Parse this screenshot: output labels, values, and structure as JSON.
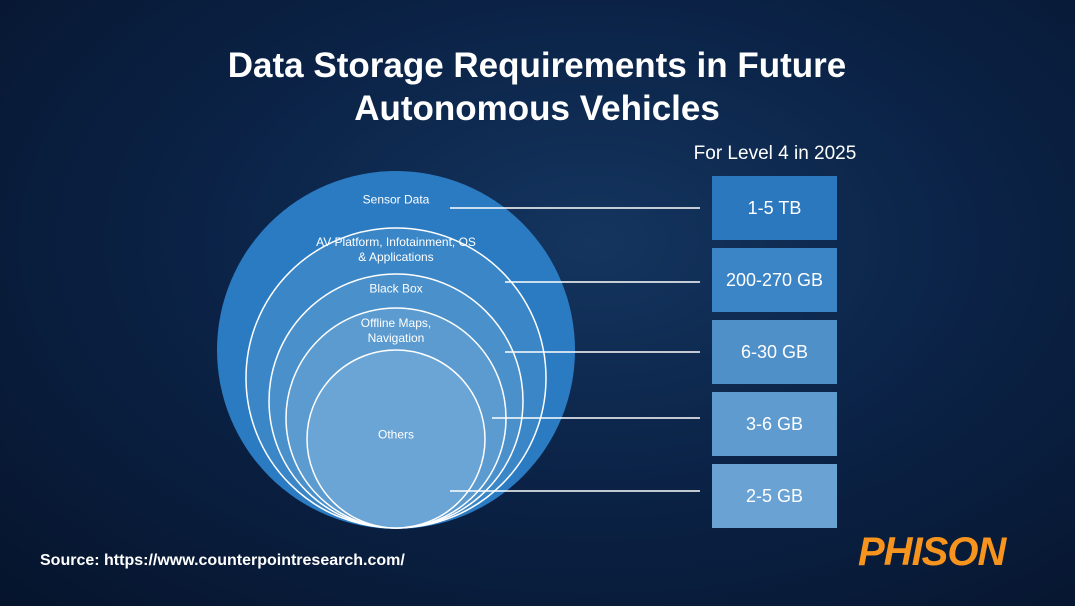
{
  "title": "Data Storage Requirements in Future Autonomous Vehicles",
  "subtitle": "For Level 4 in 2025",
  "layers": [
    {
      "label": "Sensor Data",
      "size": "1-5 TB"
    },
    {
      "label": "AV Platform, Infotainment, OS & Applications",
      "size": "200-270 GB"
    },
    {
      "label": "Black Box",
      "size": "6-30 GB"
    },
    {
      "label": "Offline Maps, Navigation",
      "size": "3-6 GB"
    },
    {
      "label": "Others",
      "size": "2-5 GB"
    }
  ],
  "source": "Source: https://www.counterpointresearch.com/",
  "logo": "PHISON"
}
